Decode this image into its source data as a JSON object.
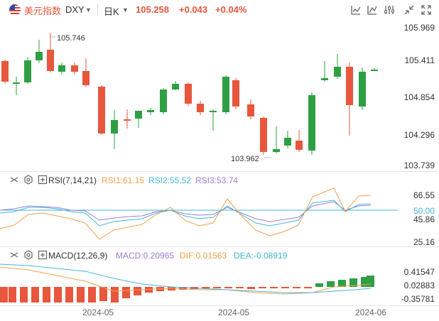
{
  "symbol": {
    "name": "美元指数",
    "code": "DXY"
  },
  "period": "日K",
  "quote": {
    "price": "105.258",
    "change": "+0.043",
    "change_pct": "+0.04%"
  },
  "colors": {
    "up": "#e8563d",
    "down": "#2ea043",
    "rsi1": "#f0a04b",
    "rsi2": "#45b5d6",
    "rsi3": "#9b7fd4",
    "macd_dif": "#f0a04b",
    "macd_dea": "#45b5d6"
  },
  "main_chart": {
    "y_ticks": [
      "105.969",
      "105.411",
      "104.854",
      "104.296",
      "103.739"
    ],
    "annotations": {
      "high": "105.746",
      "low": "103.962"
    }
  },
  "rsi": {
    "title": "RSI(7,14,21)",
    "rsi1": "RSI1:61.15",
    "rsi2": "RSI2:55.52",
    "rsi3": "RSI3:53.74",
    "y_ticks": [
      "66.55",
      "50.00",
      "45.86",
      "25.16"
    ]
  },
  "macd": {
    "title": "MACD(12,26,9)",
    "macd": "MACD:0.20965",
    "dif": "DIF:0.01563",
    "dea": "DEA:-0.08919",
    "y_ticks": [
      "0.41547",
      "0.02883",
      "-0.35781"
    ]
  },
  "x_ticks": [
    "2024-05",
    "2024-05",
    "2024-06"
  ]
}
